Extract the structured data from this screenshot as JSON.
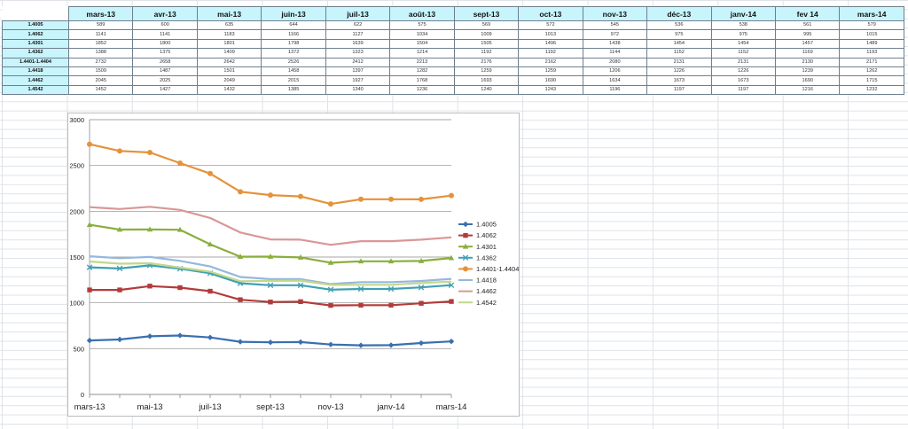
{
  "table": {
    "columns": [
      "mars-13",
      "avr-13",
      "mai-13",
      "juin-13",
      "juil-13",
      "août-13",
      "sept-13",
      "oct-13",
      "nov-13",
      "déc-13",
      "janv-14",
      "fev 14",
      "mars-14"
    ],
    "rows": [
      {
        "label": "1.4005",
        "values": [
          "589",
          "600",
          "635",
          "644",
          "622",
          "575",
          "569",
          "572",
          "545",
          "536",
          "538",
          "561",
          "579"
        ]
      },
      {
        "label": "1.4062",
        "values": [
          "1141",
          "1141",
          "1183",
          "1166",
          "1127",
          "1034",
          "1009",
          "1013",
          "972",
          "975",
          "975",
          "995",
          "1015"
        ]
      },
      {
        "label": "1.4301",
        "values": [
          "1852",
          "1800",
          "1801",
          "1798",
          "1639",
          "1504",
          "1505",
          "1496",
          "1438",
          "1454",
          "1454",
          "1457",
          "1489"
        ]
      },
      {
        "label": "1.4362",
        "values": [
          "1388",
          "1375",
          "1409",
          "1372",
          "1323",
          "1214",
          "1192",
          "1192",
          "1144",
          "1152",
          "1152",
          "1169",
          "1193"
        ]
      },
      {
        "label": "1.4401-1.4404",
        "values": [
          "2732",
          "2658",
          "2642",
          "2526",
          "2412",
          "2213",
          "2176",
          "2162",
          "2080",
          "2131",
          "2131",
          "2130",
          "2171"
        ]
      },
      {
        "label": "1.4418",
        "values": [
          "1509",
          "1487",
          "1501",
          "1458",
          "1397",
          "1282",
          "1259",
          "1259",
          "1206",
          "1226",
          "1226",
          "1239",
          "1262"
        ]
      },
      {
        "label": "1.4462",
        "values": [
          "2045",
          "2025",
          "2049",
          "2015",
          "1927",
          "1768",
          "1693",
          "1690",
          "1634",
          "1673",
          "1673",
          "1690",
          "1715"
        ]
      },
      {
        "label": "1.4542",
        "values": [
          "1452",
          "1427",
          "1432",
          "1385",
          "1340",
          "1236",
          "1240",
          "1243",
          "1196",
          "1197",
          "1197",
          "1216",
          "1232"
        ]
      }
    ]
  },
  "chart_data": {
    "type": "line",
    "x_tick_labels": [
      "mars-13",
      "mai-13",
      "juil-13",
      "sept-13",
      "nov-13",
      "janv-14",
      "mars-14"
    ],
    "categories": [
      "mars-13",
      "avr-13",
      "mai-13",
      "juin-13",
      "juil-13",
      "août-13",
      "sept-13",
      "oct-13",
      "nov-13",
      "déc-13",
      "janv-14",
      "fev 14",
      "mars-14"
    ],
    "ylim": [
      0,
      3000
    ],
    "y_ticks": [
      0,
      500,
      1000,
      1500,
      2000,
      2500,
      3000
    ],
    "grid": "horizontal",
    "legend_position": "right",
    "series": [
      {
        "name": "1.4005",
        "color": "#3a6fb0",
        "marker": "diamond",
        "values": [
          589,
          600,
          635,
          644,
          622,
          575,
          569,
          572,
          545,
          536,
          538,
          561,
          579
        ]
      },
      {
        "name": "1.4062",
        "color": "#b33b3b",
        "marker": "square",
        "values": [
          1141,
          1141,
          1183,
          1166,
          1127,
          1034,
          1009,
          1013,
          972,
          975,
          975,
          995,
          1015
        ]
      },
      {
        "name": "1.4301",
        "color": "#8aae3d",
        "marker": "triangle",
        "values": [
          1852,
          1800,
          1801,
          1798,
          1639,
          1504,
          1505,
          1496,
          1438,
          1454,
          1454,
          1457,
          1489
        ]
      },
      {
        "name": "1.4362",
        "color": "#3f9fb5",
        "marker": "x",
        "values": [
          1388,
          1375,
          1409,
          1372,
          1323,
          1214,
          1192,
          1192,
          1144,
          1152,
          1152,
          1169,
          1193
        ]
      },
      {
        "name": "1.4401-1.4404",
        "color": "#e5923b",
        "marker": "circle",
        "values": [
          2732,
          2658,
          2642,
          2526,
          2412,
          2213,
          2176,
          2162,
          2080,
          2131,
          2131,
          2130,
          2171
        ]
      },
      {
        "name": "1.4418",
        "color": "#94b8df",
        "marker": "none",
        "values": [
          1509,
          1487,
          1501,
          1458,
          1397,
          1282,
          1259,
          1259,
          1206,
          1226,
          1226,
          1239,
          1262
        ]
      },
      {
        "name": "1.4462",
        "color": "#d99796",
        "marker": "none",
        "values": [
          2045,
          2025,
          2049,
          2015,
          1927,
          1768,
          1693,
          1690,
          1634,
          1673,
          1673,
          1690,
          1715
        ]
      },
      {
        "name": "1.4542",
        "color": "#c3d78a",
        "marker": "none",
        "values": [
          1452,
          1427,
          1432,
          1385,
          1340,
          1236,
          1240,
          1243,
          1196,
          1197,
          1197,
          1216,
          1232
        ]
      }
    ]
  }
}
